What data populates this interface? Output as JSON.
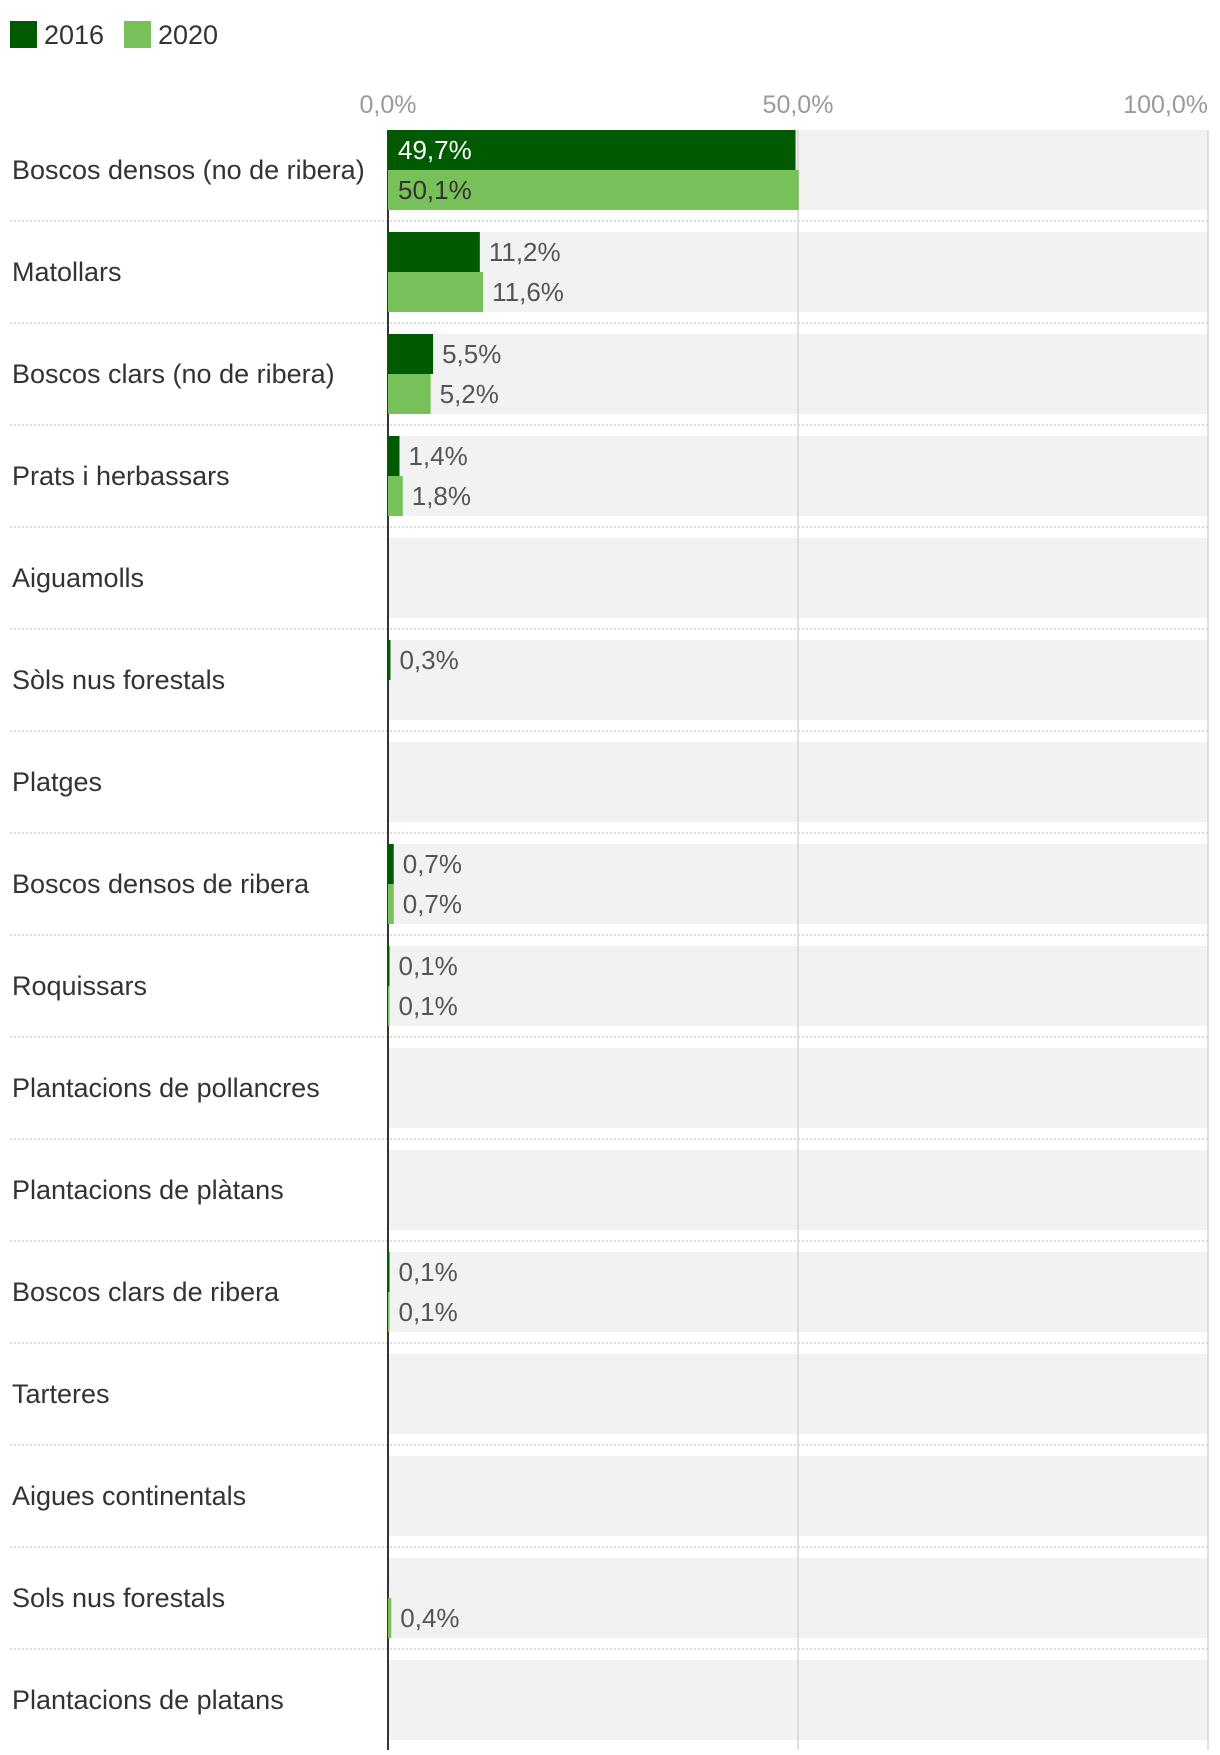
{
  "chart_data": {
    "type": "bar",
    "orientation": "horizontal",
    "title": "",
    "xlabel": "",
    "ylabel": "",
    "xlim": [
      0,
      100
    ],
    "x_ticks": [
      "0,0%",
      "50,0%",
      "100,0%"
    ],
    "x_tick_values": [
      0,
      50,
      100
    ],
    "grid": true,
    "legend_position": "top-left",
    "categories": [
      "Boscos densos (no de ribera)",
      "Matollars",
      "Boscos clars (no de ribera)",
      "Prats i herbassars",
      "Aiguamolls",
      "Sòls nus forestals",
      "Platges",
      "Boscos densos de ribera",
      "Roquissars",
      "Plantacions de pollancres",
      "Plantacions de plàtans",
      "Boscos clars de ribera",
      "Tarteres",
      "Aigues continentals",
      "Sols nus forestals",
      "Plantacions de platans"
    ],
    "series": [
      {
        "name": "2016",
        "color": "#005a02",
        "values": [
          49.7,
          11.2,
          5.5,
          1.4,
          null,
          0.3,
          null,
          0.7,
          0.1,
          null,
          null,
          0.1,
          null,
          null,
          null,
          null
        ],
        "labels": [
          "49,7%",
          "11,2%",
          "5,5%",
          "1,4%",
          "",
          "0,3%",
          "",
          "0,7%",
          "0,1%",
          "",
          "",
          "0,1%",
          "",
          "",
          "",
          ""
        ]
      },
      {
        "name": "2020",
        "color": "#78c15a",
        "values": [
          50.1,
          11.6,
          5.2,
          1.8,
          null,
          null,
          null,
          0.7,
          0.1,
          null,
          null,
          0.1,
          null,
          null,
          0.4,
          null
        ],
        "labels": [
          "50,1%",
          "11,6%",
          "5,2%",
          "1,8%",
          "",
          "",
          "",
          "0,7%",
          "0,1%",
          "",
          "",
          "0,1%",
          "",
          "",
          "0,4%",
          ""
        ]
      }
    ]
  }
}
